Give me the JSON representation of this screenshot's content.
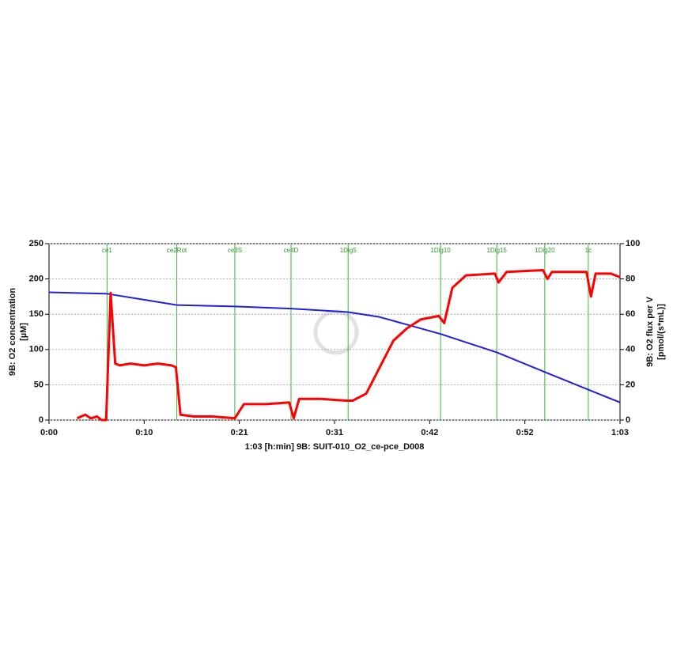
{
  "chart_data": {
    "type": "line",
    "xlabel": "1:03 [h:min] 9B: SUIT-010_O2_ce-pce_D008",
    "ylabel": [
      "9B: O2 concentration",
      "[µM]"
    ],
    "y2label": [
      "9B: O2 flux per V",
      "[pmol/(s*mL)]"
    ],
    "xlim": [
      0,
      63
    ],
    "xticks": [
      {
        "value": 0,
        "label": "0:00"
      },
      {
        "value": 10.5,
        "label": "0:10"
      },
      {
        "value": 21,
        "label": "0:21"
      },
      {
        "value": 31.5,
        "label": "0:31"
      },
      {
        "value": 42,
        "label": "0:42"
      },
      {
        "value": 52.5,
        "label": "0:52"
      },
      {
        "value": 63,
        "label": "1:03"
      }
    ],
    "ylim": [
      0,
      250
    ],
    "yticks": [
      0,
      50,
      100,
      150,
      200,
      250
    ],
    "y2lim": [
      0,
      100
    ],
    "y2ticks": [
      0,
      20,
      40,
      60,
      80,
      100
    ],
    "grid": true,
    "events": [
      {
        "x": 6.4,
        "label": "ce1"
      },
      {
        "x": 14.1,
        "label": "ce2Rot"
      },
      {
        "x": 20.5,
        "label": "ce3S"
      },
      {
        "x": 26.7,
        "label": "ce4D"
      },
      {
        "x": 33.0,
        "label": "1Dig5"
      },
      {
        "x": 43.2,
        "label": "1Dig10"
      },
      {
        "x": 49.4,
        "label": "1Dig15"
      },
      {
        "x": 54.7,
        "label": "1Dig20"
      },
      {
        "x": 59.5,
        "label": "1c"
      }
    ],
    "event_color": "#3cb43c",
    "series": [
      {
        "name": "9B: O2 concentration",
        "color": "#1f1fe0",
        "axis": "y",
        "x": [
          0,
          6.4,
          14.1,
          20.5,
          26.7,
          33.0,
          36.5,
          43.2,
          49.4,
          54.7,
          59.5,
          63
        ],
        "values": [
          181,
          179,
          163,
          161,
          158,
          153,
          146,
          122,
          96,
          68,
          43,
          25
        ]
      },
      {
        "name": "9B: O2 flux per V",
        "color": "#ff0000",
        "axis": "y2",
        "x": [
          3.1,
          4.0,
          4.6,
          5.3,
          5.8,
          6.3,
          6.8,
          7.3,
          7.8,
          9.0,
          10.5,
          12.0,
          13.5,
          14.0,
          14.5,
          16.0,
          18.0,
          20.5,
          21.5,
          24.0,
          26.5,
          27.0,
          27.6,
          30.0,
          32.8,
          33.5,
          35.0,
          36.5,
          38.0,
          39.5,
          41.0,
          43.0,
          43.6,
          44.5,
          46.0,
          49.2,
          49.6,
          50.5,
          54.5,
          55.0,
          55.5,
          59.3,
          59.8,
          60.3,
          62.0,
          63.0
        ],
        "values": [
          1,
          3,
          1,
          2,
          0,
          0,
          72,
          32,
          31,
          32,
          31,
          32,
          31,
          30,
          3,
          2,
          2,
          1,
          9,
          9,
          10,
          1,
          12,
          12,
          11,
          11,
          15,
          30,
          45,
          52,
          57,
          59,
          55,
          75,
          82,
          83,
          78,
          84,
          85,
          80,
          84,
          84,
          70,
          83,
          83,
          81
        ]
      }
    ]
  }
}
